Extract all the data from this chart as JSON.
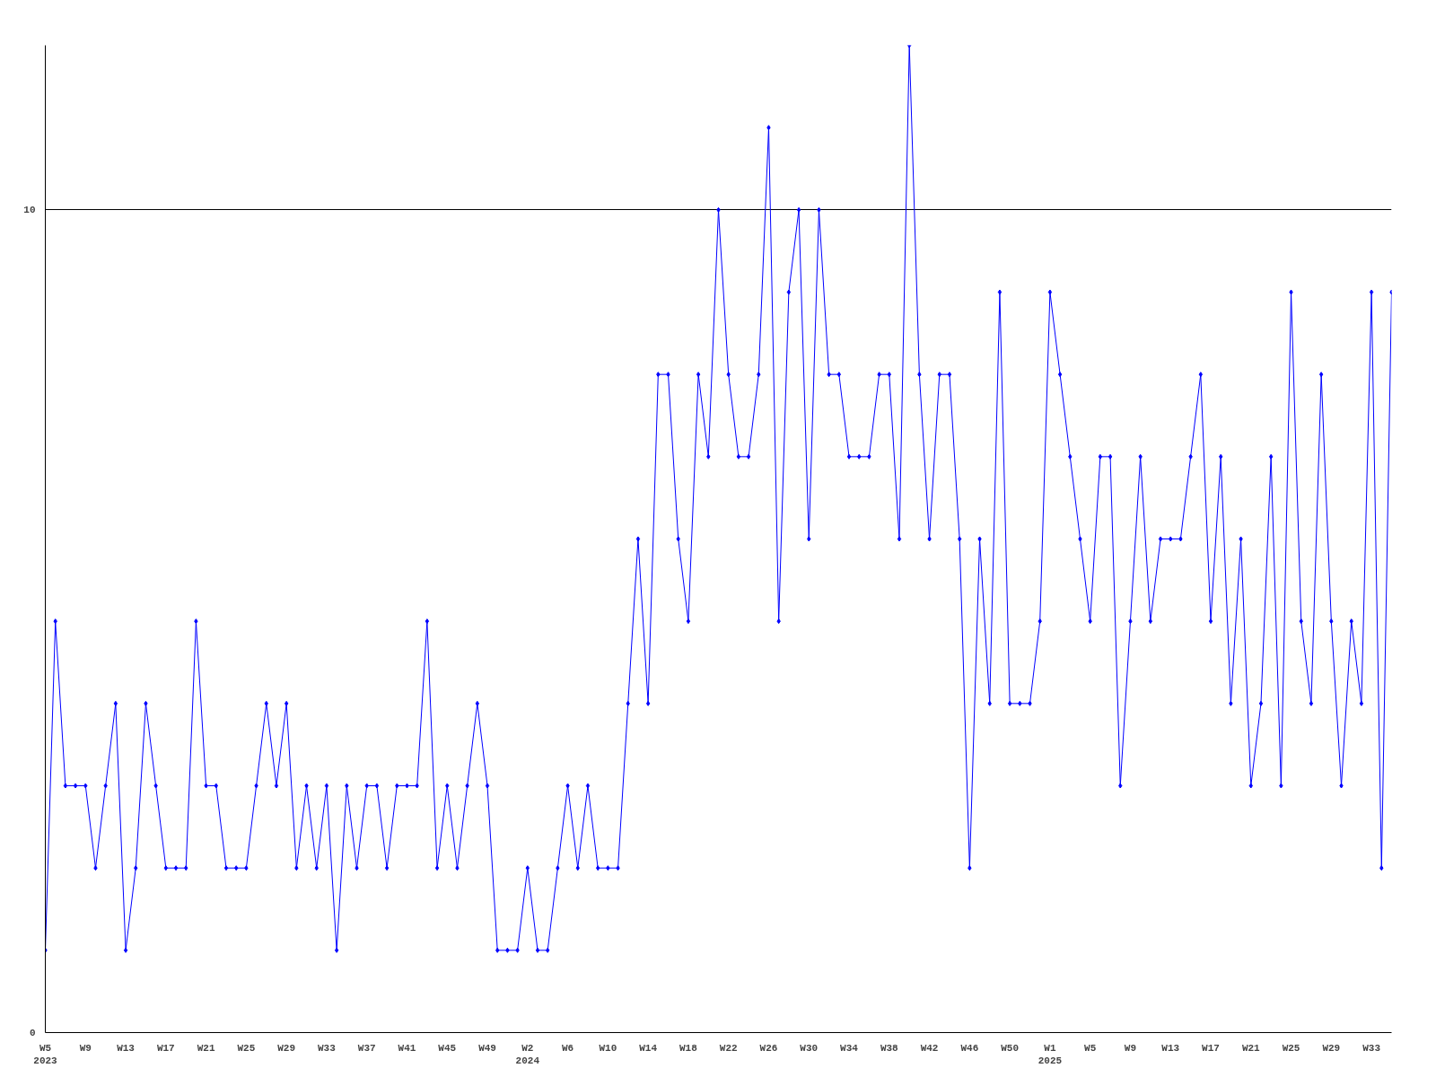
{
  "chart_data": {
    "type": "line",
    "categories": [
      "W5\n2023",
      null,
      null,
      null,
      "W9",
      null,
      null,
      null,
      "W13",
      null,
      null,
      null,
      "W17",
      null,
      null,
      null,
      "W21",
      null,
      null,
      null,
      "W25",
      null,
      null,
      null,
      "W29",
      null,
      null,
      null,
      "W33",
      null,
      null,
      null,
      "W37",
      null,
      null,
      null,
      "W41",
      null,
      null,
      null,
      "W45",
      null,
      null,
      null,
      "W49",
      null,
      null,
      null,
      "W2\n2024",
      null,
      null,
      null,
      "W6",
      null,
      null,
      null,
      "W10",
      null,
      null,
      null,
      "W14",
      null,
      null,
      null,
      "W18",
      null,
      null,
      null,
      "W22",
      null,
      null,
      null,
      "W26",
      null,
      null,
      null,
      "W30",
      null,
      null,
      null,
      "W34",
      null,
      null,
      null,
      "W38",
      null,
      null,
      null,
      "W42",
      null,
      null,
      null,
      "W46",
      null,
      null,
      null,
      "W50",
      null,
      null,
      null,
      "W1\n2025",
      null,
      null,
      null,
      "W5",
      null,
      null,
      null,
      "W9",
      null,
      null,
      null,
      "W13",
      null,
      null,
      null,
      "W17",
      null,
      null,
      null,
      "W21",
      null,
      null,
      null,
      "W25",
      null,
      null,
      null,
      "W29",
      null,
      null,
      null,
      "W33",
      null,
      null
    ],
    "series": [
      {
        "color": "#0000ff",
        "values": [
          1,
          5,
          3,
          3,
          3,
          2,
          3,
          4,
          1,
          2,
          4,
          3,
          2,
          2,
          2,
          5,
          3,
          3,
          2,
          2,
          2,
          3,
          4,
          3,
          4,
          2,
          3,
          2,
          3,
          1,
          3,
          2,
          3,
          3,
          2,
          3,
          3,
          3,
          5,
          2,
          3,
          2,
          3,
          4,
          3,
          1,
          1,
          1,
          2,
          1,
          1,
          2,
          3,
          2,
          3,
          2,
          2,
          2,
          4,
          6,
          4,
          8,
          8,
          6,
          5,
          8,
          7,
          10,
          8,
          7,
          7,
          8,
          11,
          5,
          9,
          10,
          6,
          10,
          8,
          8,
          7,
          7,
          7,
          8,
          8,
          6,
          12,
          8,
          6,
          8,
          8,
          6,
          2,
          6,
          4,
          9,
          4,
          4,
          4,
          5,
          9,
          8,
          7,
          6,
          5,
          7,
          7,
          3,
          5,
          7,
          5,
          6,
          6,
          6,
          7,
          8,
          5,
          7,
          4,
          6,
          3,
          4,
          7,
          3,
          9,
          5,
          4,
          8,
          5,
          3,
          5,
          4,
          9,
          2,
          9
        ]
      }
    ],
    "ylim": [
      0,
      12
    ],
    "yticks": [
      0,
      10
    ],
    "grid": "y",
    "marker": "diamond",
    "line_style": "solid"
  }
}
